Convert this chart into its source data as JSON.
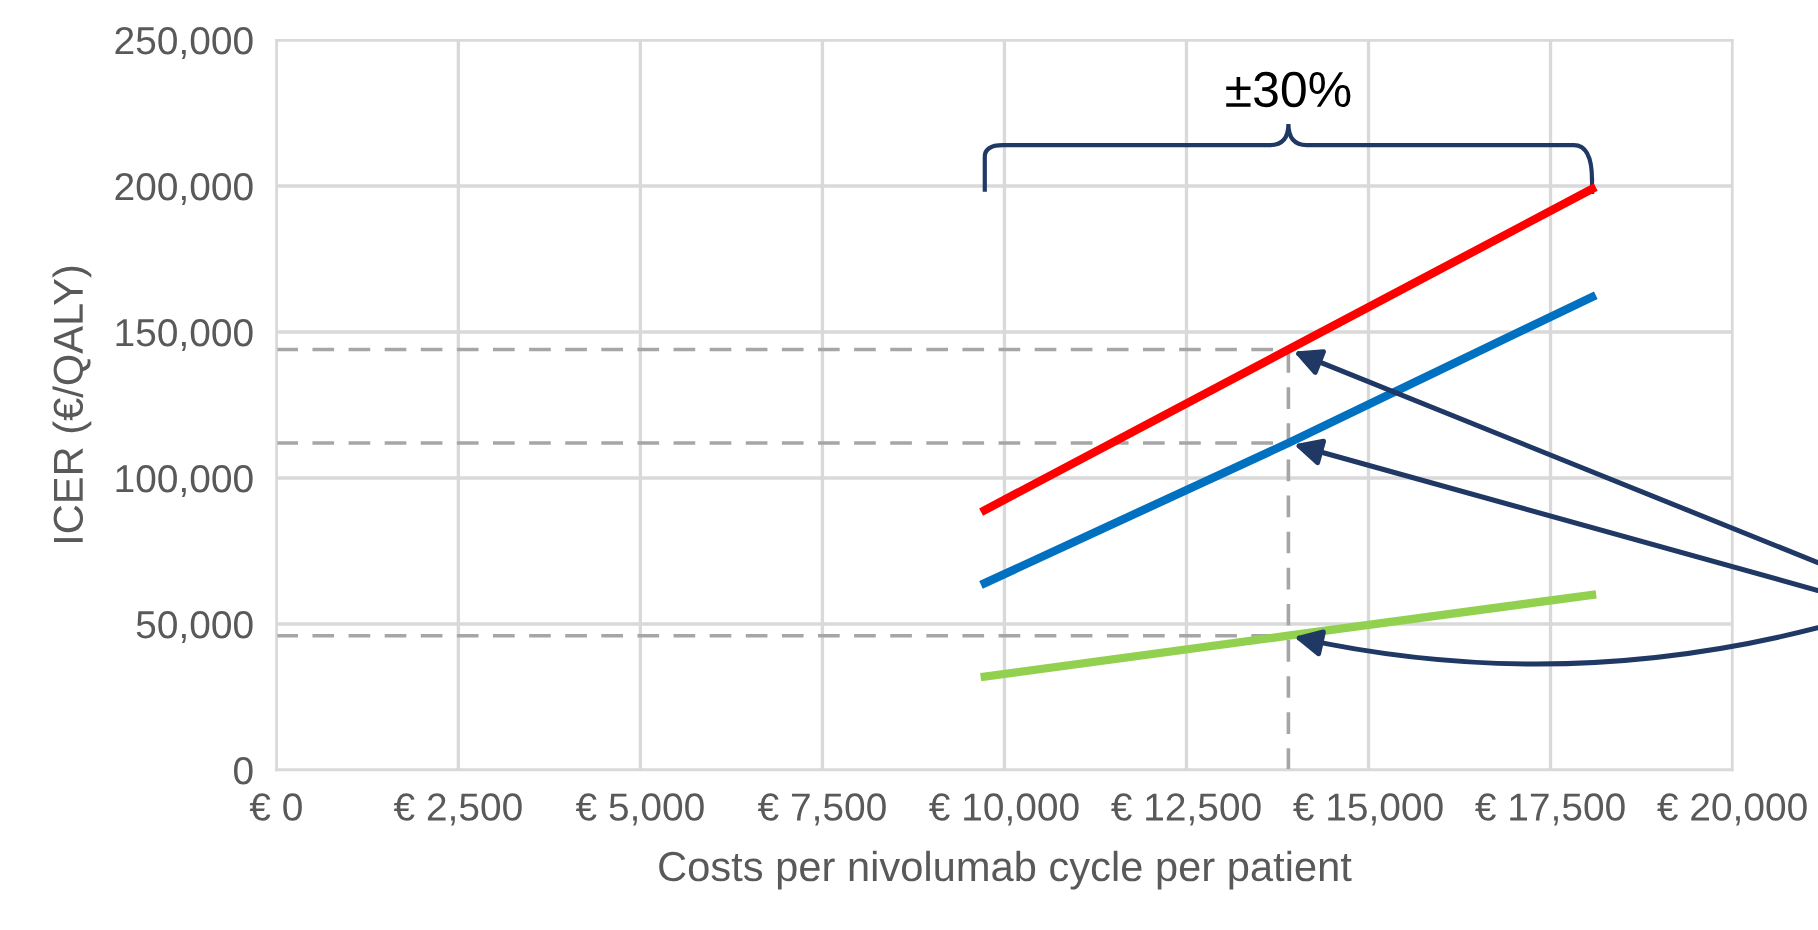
{
  "chart_data": {
    "type": "line",
    "xlabel": "Costs per nivolumab cycle per patient",
    "ylabel": "ICER (€/QALY)",
    "x": [
      9730,
      13900,
      18070
    ],
    "series": [
      {
        "color": "#ff0000",
        "values": [
          89000,
          144000,
          199000
        ]
      },
      {
        "color": "#0070c0",
        "values": [
          64000,
          112000,
          162000
        ]
      },
      {
        "color": "#92d050",
        "values": [
          32000,
          46000,
          60000
        ]
      }
    ],
    "xlim": [
      0,
      20000
    ],
    "xticks": [
      {
        "value": 0,
        "label": "€ 0"
      },
      {
        "value": 2500,
        "label": "€ 2,500"
      },
      {
        "value": 5000,
        "label": "€ 5,000"
      },
      {
        "value": 7500,
        "label": "€ 7,500"
      },
      {
        "value": 10000,
        "label": "€ 10,000"
      },
      {
        "value": 12500,
        "label": "€ 12,500"
      },
      {
        "value": 15000,
        "label": "€ 15,000"
      },
      {
        "value": 17500,
        "label": "€ 17,500"
      },
      {
        "value": 20000,
        "label": "€ 20,000"
      }
    ],
    "ylim": [
      0,
      250000
    ],
    "yticks": [
      0,
      {
        "value": 50000,
        "label": "50,000"
      },
      {
        "value": 100000,
        "label": "100,000"
      },
      {
        "value": 150000,
        "label": "150,000"
      },
      {
        "value": 200000,
        "label": "200,000"
      },
      {
        "value": 250000,
        "label": "250,000"
      }
    ],
    "ref_lines": [
      {
        "axis": "y",
        "value": 144000,
        "color": "#a6a6a6",
        "line_style": "dashed"
      },
      {
        "axis": "y",
        "value": 112000,
        "color": "#a6a6a6",
        "line_style": "dashed"
      },
      {
        "axis": "y",
        "value": 46000,
        "color": "#a6a6a6",
        "line_style": "dashed"
      },
      {
        "axis": "x",
        "value": 13900,
        "color": "#a6a6a6",
        "line_style": "dashed"
      }
    ],
    "annotations": [
      "±30%"
    ],
    "grid": true,
    "marker": "none",
    "line_style": "solid"
  }
}
